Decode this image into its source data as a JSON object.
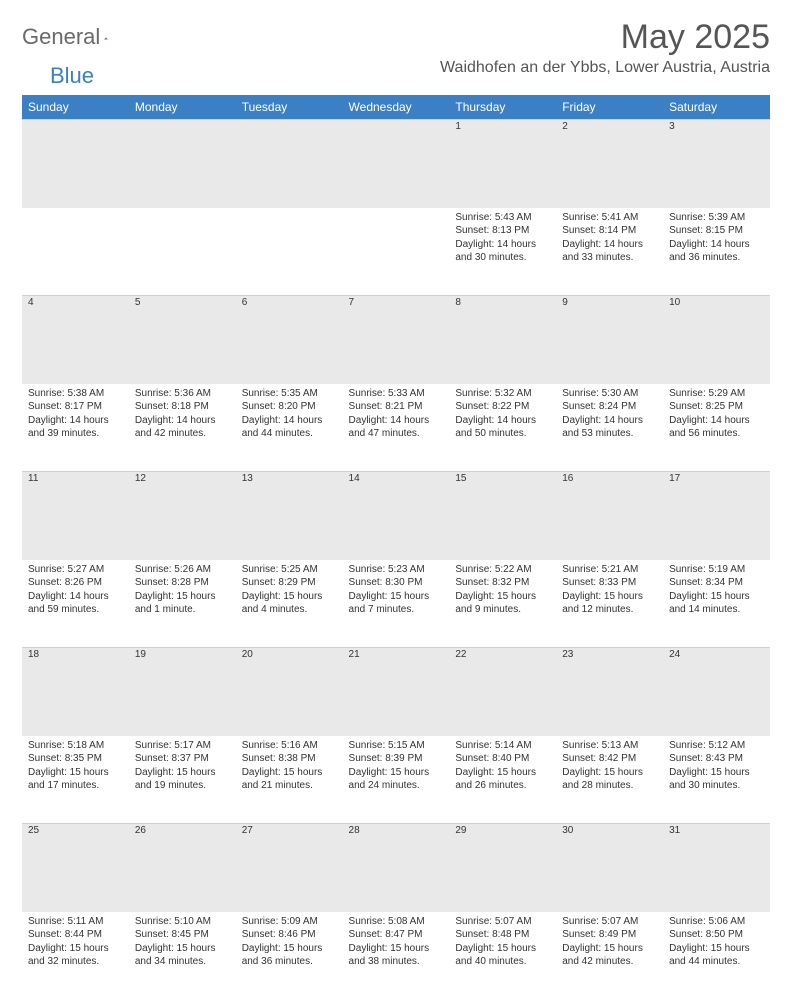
{
  "brand": {
    "word1": "General",
    "word2": "Blue",
    "accent": "#3b7fc4",
    "gray": "#6a6a6a"
  },
  "title": "May 2025",
  "location": "Waidhofen an der Ybbs, Lower Austria, Austria",
  "header_bg": "#3b7fc4",
  "header_fg": "#ffffff",
  "daynum_bg": "#e9e9e9",
  "weekdays": [
    "Sunday",
    "Monday",
    "Tuesday",
    "Wednesday",
    "Thursday",
    "Friday",
    "Saturday"
  ],
  "weeks": [
    [
      null,
      null,
      null,
      null,
      {
        "n": "1",
        "sr": "5:43 AM",
        "ss": "8:13 PM",
        "dl": "14 hours and 30 minutes."
      },
      {
        "n": "2",
        "sr": "5:41 AM",
        "ss": "8:14 PM",
        "dl": "14 hours and 33 minutes."
      },
      {
        "n": "3",
        "sr": "5:39 AM",
        "ss": "8:15 PM",
        "dl": "14 hours and 36 minutes."
      }
    ],
    [
      {
        "n": "4",
        "sr": "5:38 AM",
        "ss": "8:17 PM",
        "dl": "14 hours and 39 minutes."
      },
      {
        "n": "5",
        "sr": "5:36 AM",
        "ss": "8:18 PM",
        "dl": "14 hours and 42 minutes."
      },
      {
        "n": "6",
        "sr": "5:35 AM",
        "ss": "8:20 PM",
        "dl": "14 hours and 44 minutes."
      },
      {
        "n": "7",
        "sr": "5:33 AM",
        "ss": "8:21 PM",
        "dl": "14 hours and 47 minutes."
      },
      {
        "n": "8",
        "sr": "5:32 AM",
        "ss": "8:22 PM",
        "dl": "14 hours and 50 minutes."
      },
      {
        "n": "9",
        "sr": "5:30 AM",
        "ss": "8:24 PM",
        "dl": "14 hours and 53 minutes."
      },
      {
        "n": "10",
        "sr": "5:29 AM",
        "ss": "8:25 PM",
        "dl": "14 hours and 56 minutes."
      }
    ],
    [
      {
        "n": "11",
        "sr": "5:27 AM",
        "ss": "8:26 PM",
        "dl": "14 hours and 59 minutes."
      },
      {
        "n": "12",
        "sr": "5:26 AM",
        "ss": "8:28 PM",
        "dl": "15 hours and 1 minute."
      },
      {
        "n": "13",
        "sr": "5:25 AM",
        "ss": "8:29 PM",
        "dl": "15 hours and 4 minutes."
      },
      {
        "n": "14",
        "sr": "5:23 AM",
        "ss": "8:30 PM",
        "dl": "15 hours and 7 minutes."
      },
      {
        "n": "15",
        "sr": "5:22 AM",
        "ss": "8:32 PM",
        "dl": "15 hours and 9 minutes."
      },
      {
        "n": "16",
        "sr": "5:21 AM",
        "ss": "8:33 PM",
        "dl": "15 hours and 12 minutes."
      },
      {
        "n": "17",
        "sr": "5:19 AM",
        "ss": "8:34 PM",
        "dl": "15 hours and 14 minutes."
      }
    ],
    [
      {
        "n": "18",
        "sr": "5:18 AM",
        "ss": "8:35 PM",
        "dl": "15 hours and 17 minutes."
      },
      {
        "n": "19",
        "sr": "5:17 AM",
        "ss": "8:37 PM",
        "dl": "15 hours and 19 minutes."
      },
      {
        "n": "20",
        "sr": "5:16 AM",
        "ss": "8:38 PM",
        "dl": "15 hours and 21 minutes."
      },
      {
        "n": "21",
        "sr": "5:15 AM",
        "ss": "8:39 PM",
        "dl": "15 hours and 24 minutes."
      },
      {
        "n": "22",
        "sr": "5:14 AM",
        "ss": "8:40 PM",
        "dl": "15 hours and 26 minutes."
      },
      {
        "n": "23",
        "sr": "5:13 AM",
        "ss": "8:42 PM",
        "dl": "15 hours and 28 minutes."
      },
      {
        "n": "24",
        "sr": "5:12 AM",
        "ss": "8:43 PM",
        "dl": "15 hours and 30 minutes."
      }
    ],
    [
      {
        "n": "25",
        "sr": "5:11 AM",
        "ss": "8:44 PM",
        "dl": "15 hours and 32 minutes."
      },
      {
        "n": "26",
        "sr": "5:10 AM",
        "ss": "8:45 PM",
        "dl": "15 hours and 34 minutes."
      },
      {
        "n": "27",
        "sr": "5:09 AM",
        "ss": "8:46 PM",
        "dl": "15 hours and 36 minutes."
      },
      {
        "n": "28",
        "sr": "5:08 AM",
        "ss": "8:47 PM",
        "dl": "15 hours and 38 minutes."
      },
      {
        "n": "29",
        "sr": "5:07 AM",
        "ss": "8:48 PM",
        "dl": "15 hours and 40 minutes."
      },
      {
        "n": "30",
        "sr": "5:07 AM",
        "ss": "8:49 PM",
        "dl": "15 hours and 42 minutes."
      },
      {
        "n": "31",
        "sr": "5:06 AM",
        "ss": "8:50 PM",
        "dl": "15 hours and 44 minutes."
      }
    ]
  ],
  "labels": {
    "sunrise": "Sunrise: ",
    "sunset": "Sunset: ",
    "daylight": "Daylight: "
  }
}
